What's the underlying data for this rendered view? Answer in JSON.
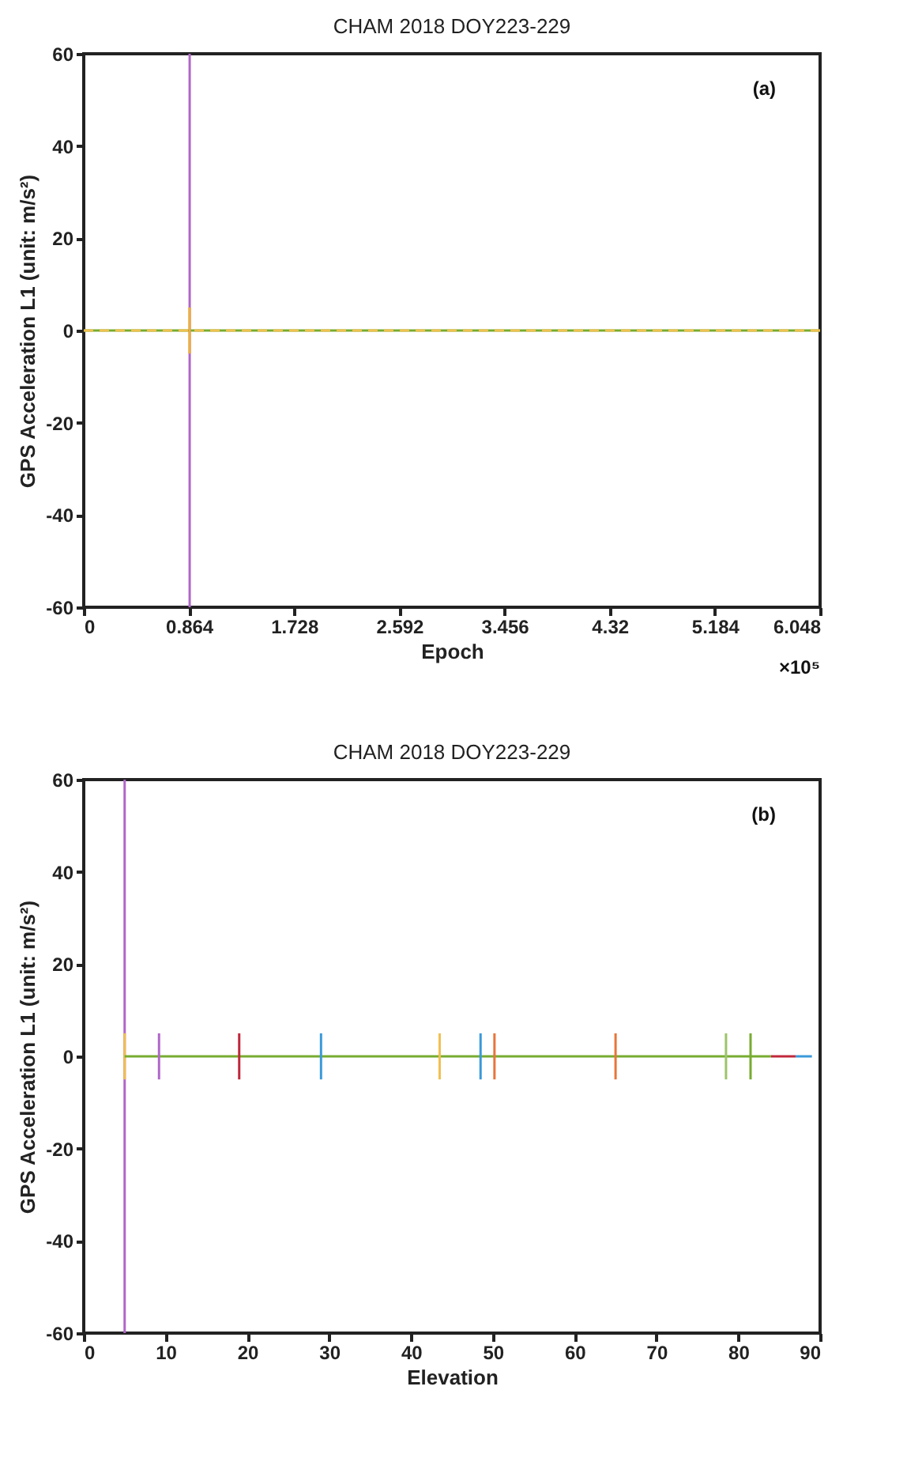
{
  "chart_data": [
    {
      "type": "line",
      "title": "CHAM 2018 DOY223-229",
      "xlabel": "Epoch",
      "ylabel": "GPS Acceleration L1 (unit: m/s²)",
      "annotations": [
        "(a)",
        "×10⁵"
      ],
      "xlim": [
        0,
        6.048
      ],
      "xticks": [
        0,
        0.864,
        1.728,
        2.592,
        3.456,
        4.32,
        5.184,
        6.048
      ],
      "ylim": [
        -60,
        60
      ],
      "yticks": [
        -60,
        -40,
        -20,
        0,
        20,
        40,
        60
      ],
      "grid": false,
      "series": [
        {
          "color": "#77ac30",
          "x": [
            0,
            6.048
          ],
          "values": [
            0,
            0
          ]
        },
        {
          "color": "#f0c050",
          "x": [
            0,
            6.048
          ],
          "values": [
            0,
            0
          ],
          "line_style": "dashed"
        },
        {
          "color": "#b066c8",
          "x": [
            0.87,
            0.87
          ],
          "values": [
            -60,
            60
          ]
        },
        {
          "color": "#f0b030",
          "x": [
            0.87,
            0.87
          ],
          "values": [
            -5,
            5
          ]
        }
      ]
    },
    {
      "type": "line",
      "title": "CHAM 2018 DOY223-229",
      "xlabel": "Elevation",
      "ylabel": "GPS Acceleration L1 (unit: m/s²)",
      "annotations": [
        "(b)"
      ],
      "xlim": [
        0,
        90
      ],
      "xticks": [
        0,
        10,
        20,
        30,
        40,
        50,
        60,
        70,
        80,
        90
      ],
      "ylim": [
        -60,
        60
      ],
      "yticks": [
        -60,
        -40,
        -20,
        0,
        20,
        40,
        60
      ],
      "grid": false,
      "series": [
        {
          "color": "#b066c8",
          "x": [
            5,
            5
          ],
          "values": [
            -60,
            60
          ]
        },
        {
          "color": "#f0c050",
          "x": [
            5,
            5
          ],
          "values": [
            -5,
            5
          ]
        },
        {
          "color": "#77ac30",
          "x": [
            5,
            84
          ],
          "values": [
            0,
            0
          ]
        },
        {
          "color": "#c0283a",
          "x": [
            84,
            87
          ],
          "values": [
            0,
            0
          ]
        },
        {
          "color": "#3a9ad9",
          "x": [
            87,
            89
          ],
          "values": [
            0,
            0
          ]
        },
        {
          "color": "#b066c8",
          "x": [
            9.2,
            9.2
          ],
          "values": [
            -5,
            5
          ]
        },
        {
          "color": "#c0283a",
          "x": [
            19,
            19
          ],
          "values": [
            -5,
            5
          ]
        },
        {
          "color": "#3a9ad9",
          "x": [
            29,
            29
          ],
          "values": [
            -5,
            5
          ]
        },
        {
          "color": "#f0c050",
          "x": [
            43.5,
            43.5
          ],
          "values": [
            -5,
            5
          ]
        },
        {
          "color": "#3a9ad9",
          "x": [
            48.5,
            48.5
          ],
          "values": [
            -5,
            5
          ]
        },
        {
          "color": "#e8753a",
          "x": [
            50.2,
            50.2
          ],
          "values": [
            -5,
            5
          ]
        },
        {
          "color": "#e8753a",
          "x": [
            65,
            65
          ],
          "values": [
            -5,
            5
          ]
        },
        {
          "color": "#9cc46a",
          "x": [
            78.5,
            78.5
          ],
          "values": [
            -5,
            5
          ]
        },
        {
          "color": "#77ac30",
          "x": [
            81.5,
            81.5
          ],
          "values": [
            -5,
            5
          ]
        }
      ]
    }
  ]
}
